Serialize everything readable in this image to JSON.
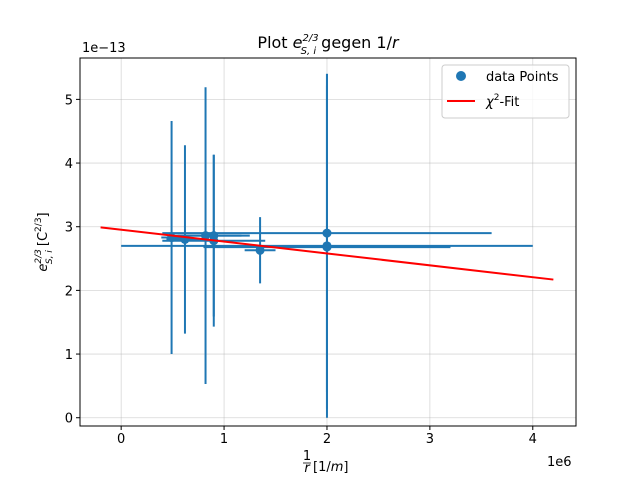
{
  "chart_data": {
    "type": "scatter",
    "title_prefix": "Plot ",
    "title_symbol": "e",
    "title_sup": "2/3",
    "title_sub": "S, i",
    "title_suffix": " gegen 1/",
    "title_var": "r",
    "ylabel_base": "e",
    "ylabel_sup": "2/3",
    "ylabel_sub": "S, i",
    "ylabel_unit": " [C",
    "ylabel_unit_sup": "2/3",
    "ylabel_unit_end": "]",
    "xlabel_frac_num": "1",
    "xlabel_frac_den": "r",
    "xlabel_unit": " [1/",
    "xlabel_unit_var": "m",
    "xlabel_unit_end": "]",
    "x_offset_label": "1e6",
    "y_offset_label": "1e−13",
    "xlim": [
      -400000,
      4420000
    ],
    "ylim": [
      -1.3e-14,
      5.65e-13
    ],
    "x_tick_values": [
      0,
      1000000,
      2000000,
      3000000,
      4000000
    ],
    "x_tick_labels": [
      "0",
      "1",
      "2",
      "3",
      "4"
    ],
    "y_tick_values": [
      0,
      1e-13,
      2e-13,
      3e-13,
      4e-13,
      5e-13
    ],
    "y_tick_labels": [
      "0",
      "1",
      "2",
      "3",
      "4",
      "5"
    ],
    "grid": true,
    "legend_position": "upper right",
    "series": [
      {
        "name": "data Points",
        "color": "#1f77b4",
        "points": [
          {
            "x": 490000,
            "y": 2.83e-13,
            "xerr": 100000,
            "yerr": 1.83e-13
          },
          {
            "x": 620000,
            "y": 2.8e-13,
            "xerr": 180000,
            "yerr": 1.48e-13
          },
          {
            "x": 820000,
            "y": 2.86e-13,
            "xerr": 350000,
            "yerr": 2.33e-13
          },
          {
            "x": 900000,
            "y": 2.78e-13,
            "xerr": 500000,
            "yerr": 1.35e-13
          },
          {
            "x": 900000,
            "y": 2.86e-13,
            "xerr": 350000,
            "yerr": 1.27e-13
          },
          {
            "x": 1350000,
            "y": 2.63e-13,
            "xerr": 150000,
            "yerr": 5.2e-14
          },
          {
            "x": 2000000,
            "y": 2.9e-13,
            "xerr": 1600000,
            "yerr": 2.5e-13
          },
          {
            "x": 2000000,
            "y": 2.68e-13,
            "xerr": 1200000,
            "yerr": 2.54e-13
          },
          {
            "x": 2000000,
            "y": 2.7e-13,
            "xerr": 2000000,
            "yerr": 2.7e-13
          }
        ]
      }
    ],
    "fit": {
      "name_prefix": "χ",
      "name_sup": "2",
      "name_suffix": "-Fit",
      "color": "#ff0000",
      "x": [
        -200000,
        4200000
      ],
      "y": [
        2.99e-13,
        2.17e-13
      ]
    }
  }
}
